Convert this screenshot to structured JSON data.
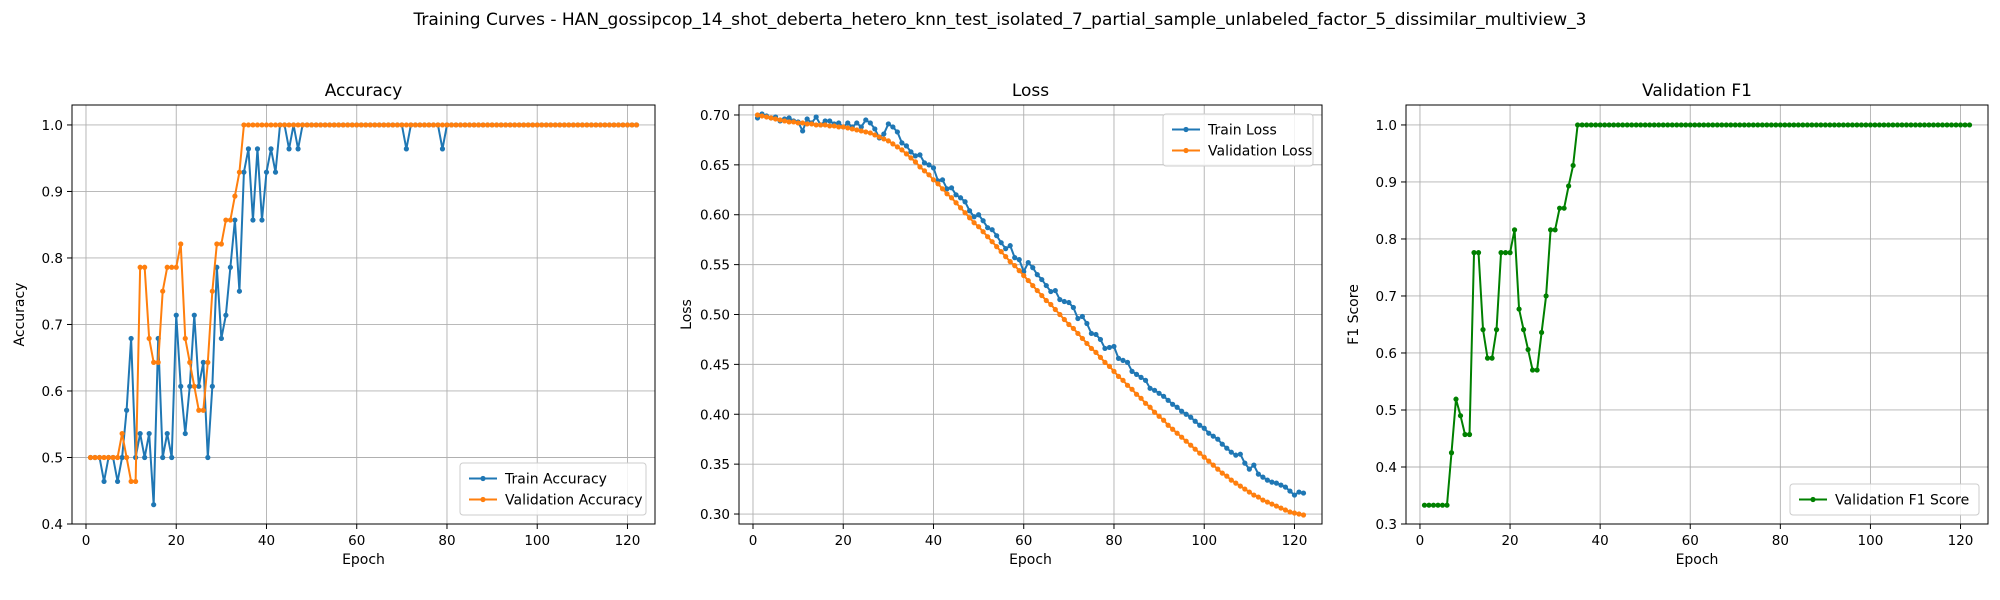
{
  "figure": {
    "title": "Training Curves - HAN_gossipcop_14_shot_deberta_hetero_knn_test_isolated_7_partial_sample_unlabeled_factor_5_dissimilar_multiview_3"
  },
  "colors": {
    "blue": "#1f77b4",
    "orange": "#ff7f0e",
    "green": "#008000",
    "grid": "#b0b0b0"
  },
  "chart_data": [
    {
      "type": "line",
      "title": "Accuracy",
      "xlabel": "Epoch",
      "ylabel": "Accuracy",
      "xlim": [
        -3.1,
        126.1
      ],
      "ylim": [
        0.4,
        1.03
      ],
      "xticks": [
        0,
        20,
        40,
        60,
        80,
        100,
        120
      ],
      "yticks": [
        0.4,
        0.5,
        0.6,
        0.7,
        0.8,
        0.9,
        1.0
      ],
      "ytick_labels": [
        "0.4",
        "0.5",
        "0.6",
        "0.7",
        "0.8",
        "0.9",
        "1.0"
      ],
      "grid": true,
      "legend": "lower-right",
      "series": [
        {
          "name": "Train Accuracy",
          "color": "#1f77b4",
          "x_start": 1,
          "values": [
            0.5,
            0.5,
            0.5,
            0.464,
            0.5,
            0.5,
            0.464,
            0.5,
            0.571,
            0.679,
            0.5,
            0.536,
            0.5,
            0.536,
            0.429,
            0.679,
            0.5,
            0.536,
            0.5,
            0.714,
            0.607,
            0.536,
            0.607,
            0.714,
            0.607,
            0.643,
            0.5,
            0.607,
            0.786,
            0.679,
            0.714,
            0.786,
            0.857,
            0.75,
            0.929,
            0.964,
            0.857,
            0.964,
            0.857,
            0.929,
            0.964,
            0.929,
            1.0,
            1.0,
            0.964,
            1.0,
            0.964,
            1.0,
            1.0,
            1.0,
            1.0,
            1.0,
            1.0,
            1.0,
            1.0,
            1.0,
            1.0,
            1.0,
            1.0,
            1.0,
            1.0,
            1.0,
            1.0,
            1.0,
            1.0,
            1.0,
            1.0,
            1.0,
            1.0,
            1.0,
            0.964,
            1.0,
            1.0,
            1.0,
            1.0,
            1.0,
            1.0,
            1.0,
            0.964,
            1.0,
            1.0,
            1.0,
            1.0,
            1.0,
            1.0,
            1.0,
            1.0,
            1.0,
            1.0,
            1.0,
            1.0,
            1.0,
            1.0,
            1.0,
            1.0,
            1.0,
            1.0,
            1.0,
            1.0,
            1.0,
            1.0,
            1.0,
            1.0,
            1.0,
            1.0,
            1.0,
            1.0,
            1.0,
            1.0,
            1.0,
            1.0,
            1.0,
            1.0,
            1.0,
            1.0,
            1.0,
            1.0,
            1.0,
            1.0,
            1.0,
            1.0,
            1.0
          ]
        },
        {
          "name": "Validation Accuracy",
          "color": "#ff7f0e",
          "x_start": 1,
          "values": [
            0.5,
            0.5,
            0.5,
            0.5,
            0.5,
            0.5,
            0.5,
            0.536,
            0.5,
            0.464,
            0.464,
            0.786,
            0.786,
            0.679,
            0.643,
            0.643,
            0.75,
            0.786,
            0.786,
            0.786,
            0.821,
            0.679,
            0.643,
            0.607,
            0.571,
            0.571,
            0.643,
            0.75,
            0.821,
            0.821,
            0.857,
            0.857,
            0.893,
            0.929,
            1.0,
            1.0,
            1.0,
            1.0,
            1.0,
            1.0,
            1.0,
            1.0,
            1.0,
            1.0,
            1.0,
            1.0,
            1.0,
            1.0,
            1.0,
            1.0,
            1.0,
            1.0,
            1.0,
            1.0,
            1.0,
            1.0,
            1.0,
            1.0,
            1.0,
            1.0,
            1.0,
            1.0,
            1.0,
            1.0,
            1.0,
            1.0,
            1.0,
            1.0,
            1.0,
            1.0,
            1.0,
            1.0,
            1.0,
            1.0,
            1.0,
            1.0,
            1.0,
            1.0,
            1.0,
            1.0,
            1.0,
            1.0,
            1.0,
            1.0,
            1.0,
            1.0,
            1.0,
            1.0,
            1.0,
            1.0,
            1.0,
            1.0,
            1.0,
            1.0,
            1.0,
            1.0,
            1.0,
            1.0,
            1.0,
            1.0,
            1.0,
            1.0,
            1.0,
            1.0,
            1.0,
            1.0,
            1.0,
            1.0,
            1.0,
            1.0,
            1.0,
            1.0,
            1.0,
            1.0,
            1.0,
            1.0,
            1.0,
            1.0,
            1.0,
            1.0,
            1.0,
            1.0
          ]
        }
      ]
    },
    {
      "type": "line",
      "title": "Loss",
      "xlabel": "Epoch",
      "ylabel": "Loss",
      "xlim": [
        -3.1,
        126.1
      ],
      "ylim": [
        0.29,
        0.71
      ],
      "xticks": [
        0,
        20,
        40,
        60,
        80,
        100,
        120
      ],
      "yticks": [
        0.3,
        0.35,
        0.4,
        0.45,
        0.5,
        0.55,
        0.6,
        0.65,
        0.7
      ],
      "ytick_labels": [
        "0.30",
        "0.35",
        "0.40",
        "0.45",
        "0.50",
        "0.55",
        "0.60",
        "0.65",
        "0.70"
      ],
      "grid": true,
      "legend": "upper-right",
      "series": [
        {
          "name": "Train Loss",
          "color": "#1f77b4",
          "x_start": 1,
          "values": [
            0.697,
            0.701,
            0.699,
            0.697,
            0.698,
            0.694,
            0.696,
            0.697,
            0.694,
            0.693,
            0.684,
            0.696,
            0.692,
            0.698,
            0.69,
            0.694,
            0.694,
            0.691,
            0.692,
            0.688,
            0.692,
            0.688,
            0.692,
            0.688,
            0.695,
            0.692,
            0.686,
            0.677,
            0.681,
            0.691,
            0.688,
            0.683,
            0.672,
            0.669,
            0.663,
            0.659,
            0.66,
            0.652,
            0.65,
            0.647,
            0.634,
            0.635,
            0.626,
            0.627,
            0.62,
            0.617,
            0.613,
            0.604,
            0.598,
            0.6,
            0.594,
            0.587,
            0.585,
            0.579,
            0.572,
            0.566,
            0.569,
            0.557,
            0.555,
            0.543,
            0.552,
            0.547,
            0.54,
            0.535,
            0.529,
            0.523,
            0.524,
            0.515,
            0.513,
            0.512,
            0.507,
            0.496,
            0.498,
            0.491,
            0.481,
            0.48,
            0.475,
            0.466,
            0.467,
            0.468,
            0.456,
            0.454,
            0.452,
            0.443,
            0.44,
            0.437,
            0.434,
            0.426,
            0.424,
            0.421,
            0.418,
            0.414,
            0.41,
            0.407,
            0.403,
            0.4,
            0.397,
            0.393,
            0.389,
            0.386,
            0.381,
            0.378,
            0.375,
            0.37,
            0.366,
            0.362,
            0.359,
            0.36,
            0.351,
            0.345,
            0.349,
            0.34,
            0.337,
            0.334,
            0.332,
            0.331,
            0.329,
            0.327,
            0.323,
            0.319,
            0.322,
            0.321
          ]
        },
        {
          "name": "Validation Loss",
          "color": "#ff7f0e",
          "x_start": 1,
          "values": [
            0.7,
            0.699,
            0.698,
            0.697,
            0.696,
            0.695,
            0.694,
            0.693,
            0.693,
            0.692,
            0.692,
            0.691,
            0.691,
            0.69,
            0.69,
            0.69,
            0.689,
            0.689,
            0.688,
            0.688,
            0.687,
            0.686,
            0.685,
            0.684,
            0.683,
            0.682,
            0.68,
            0.678,
            0.676,
            0.674,
            0.671,
            0.668,
            0.665,
            0.661,
            0.657,
            0.653,
            0.648,
            0.644,
            0.64,
            0.635,
            0.631,
            0.626,
            0.621,
            0.617,
            0.612,
            0.607,
            0.602,
            0.597,
            0.592,
            0.588,
            0.583,
            0.578,
            0.573,
            0.568,
            0.563,
            0.558,
            0.553,
            0.549,
            0.544,
            0.539,
            0.534,
            0.529,
            0.524,
            0.519,
            0.514,
            0.51,
            0.505,
            0.5,
            0.495,
            0.49,
            0.486,
            0.481,
            0.476,
            0.471,
            0.466,
            0.462,
            0.457,
            0.452,
            0.448,
            0.443,
            0.438,
            0.434,
            0.429,
            0.425,
            0.42,
            0.416,
            0.411,
            0.407,
            0.402,
            0.398,
            0.394,
            0.389,
            0.385,
            0.381,
            0.377,
            0.373,
            0.369,
            0.365,
            0.361,
            0.357,
            0.353,
            0.349,
            0.345,
            0.341,
            0.338,
            0.334,
            0.331,
            0.328,
            0.325,
            0.322,
            0.319,
            0.317,
            0.314,
            0.312,
            0.31,
            0.308,
            0.306,
            0.304,
            0.302,
            0.301,
            0.3,
            0.299
          ]
        }
      ]
    },
    {
      "type": "line",
      "title": "Validation F1",
      "xlabel": "Epoch",
      "ylabel": "F1 Score",
      "xlim": [
        -3.1,
        126.1
      ],
      "ylim": [
        0.3,
        1.035
      ],
      "xticks": [
        0,
        20,
        40,
        60,
        80,
        100,
        120
      ],
      "yticks": [
        0.3,
        0.4,
        0.5,
        0.6,
        0.7,
        0.8,
        0.9,
        1.0
      ],
      "ytick_labels": [
        "0.3",
        "0.4",
        "0.5",
        "0.6",
        "0.7",
        "0.8",
        "0.9",
        "1.0"
      ],
      "grid": true,
      "legend": "lower-right",
      "series": [
        {
          "name": "Validation F1 Score",
          "color": "#008000",
          "x_start": 1,
          "values": [
            0.333,
            0.333,
            0.333,
            0.333,
            0.333,
            0.333,
            0.425,
            0.519,
            0.49,
            0.457,
            0.457,
            0.776,
            0.776,
            0.641,
            0.591,
            0.591,
            0.641,
            0.776,
            0.776,
            0.776,
            0.816,
            0.677,
            0.641,
            0.606,
            0.57,
            0.57,
            0.636,
            0.7,
            0.816,
            0.816,
            0.854,
            0.854,
            0.893,
            0.929,
            1.0,
            1.0,
            1.0,
            1.0,
            1.0,
            1.0,
            1.0,
            1.0,
            1.0,
            1.0,
            1.0,
            1.0,
            1.0,
            1.0,
            1.0,
            1.0,
            1.0,
            1.0,
            1.0,
            1.0,
            1.0,
            1.0,
            1.0,
            1.0,
            1.0,
            1.0,
            1.0,
            1.0,
            1.0,
            1.0,
            1.0,
            1.0,
            1.0,
            1.0,
            1.0,
            1.0,
            1.0,
            1.0,
            1.0,
            1.0,
            1.0,
            1.0,
            1.0,
            1.0,
            1.0,
            1.0,
            1.0,
            1.0,
            1.0,
            1.0,
            1.0,
            1.0,
            1.0,
            1.0,
            1.0,
            1.0,
            1.0,
            1.0,
            1.0,
            1.0,
            1.0,
            1.0,
            1.0,
            1.0,
            1.0,
            1.0,
            1.0,
            1.0,
            1.0,
            1.0,
            1.0,
            1.0,
            1.0,
            1.0,
            1.0,
            1.0,
            1.0,
            1.0,
            1.0,
            1.0,
            1.0,
            1.0,
            1.0,
            1.0,
            1.0,
            1.0,
            1.0,
            1.0
          ]
        }
      ]
    }
  ]
}
